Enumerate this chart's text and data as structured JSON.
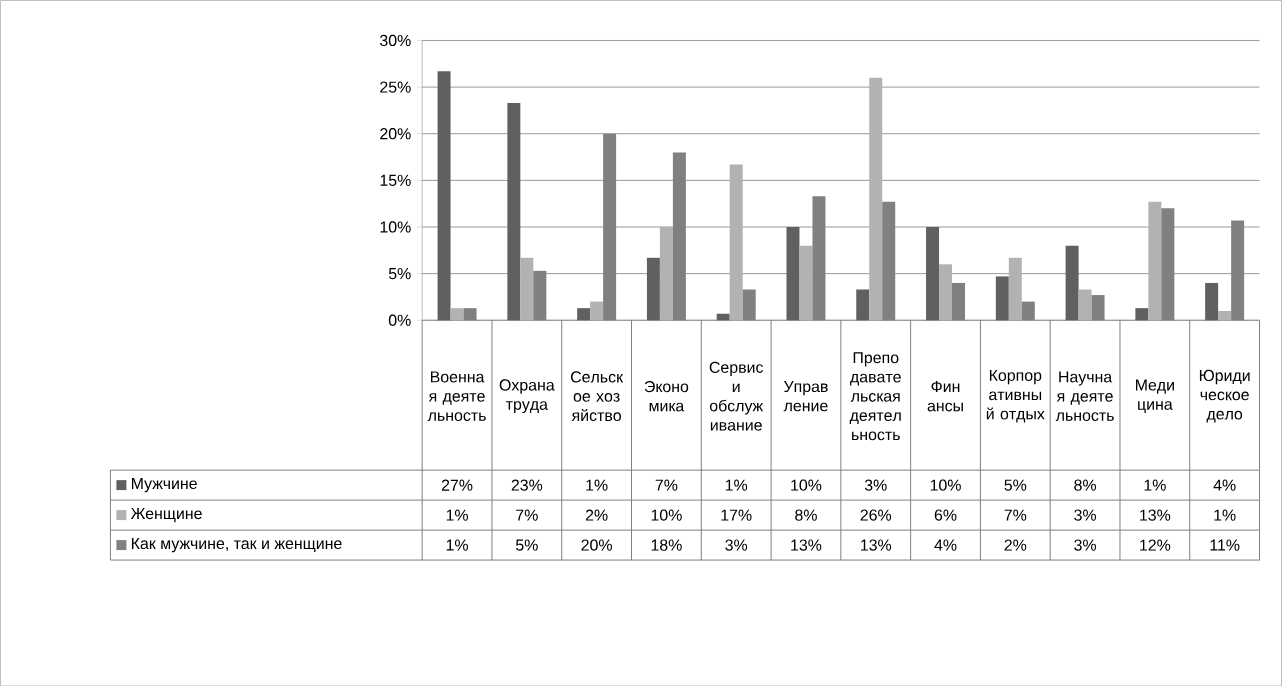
{
  "chart_data": {
    "type": "bar",
    "categories": [
      "Военная деятельность",
      "Охрана труда",
      "Сельское хозяйство",
      "Экономика",
      "Сервис и обслуживание",
      "Управление",
      "Преподавательская деятельность",
      "Финансы",
      "Корпоративный отдых",
      "Научная деятельность",
      "Медицина",
      "Юридическое дело"
    ],
    "series": [
      {
        "name": "Мужчине",
        "color": "#606060",
        "values": [
          26.7,
          23.3,
          1.3,
          6.7,
          0.7,
          10,
          3.3,
          10,
          4.7,
          8,
          1.3,
          4
        ],
        "value_labels": [
          "27%",
          "23%",
          "1%",
          "7%",
          "1%",
          "10%",
          "3%",
          "10%",
          "5%",
          "8%",
          "1%",
          "4%"
        ]
      },
      {
        "name": "Женщине",
        "color": "#b2b2b2",
        "values": [
          1.3,
          6.7,
          2,
          10,
          16.7,
          8,
          26,
          6,
          6.7,
          3.3,
          12.7,
          1
        ],
        "value_labels": [
          "1%",
          "7%",
          "2%",
          "10%",
          "17%",
          "8%",
          "26%",
          "6%",
          "7%",
          "3%",
          "13%",
          "1%"
        ]
      },
      {
        "name": "Как мужчине, так и женщине",
        "color": "#808080",
        "values": [
          1.3,
          5.3,
          20,
          18,
          3.3,
          13.3,
          12.7,
          4,
          2,
          2.7,
          12,
          10.7
        ],
        "value_labels": [
          "1%",
          "5%",
          "20%",
          "18%",
          "3%",
          "13%",
          "13%",
          "4%",
          "2%",
          "3%",
          "12%",
          "11%"
        ]
      }
    ],
    "ylim": [
      0,
      30
    ],
    "yticks": [
      {
        "value": 0,
        "label": "0%"
      },
      {
        "value": 5,
        "label": "5%"
      },
      {
        "value": 10,
        "label": "10%"
      },
      {
        "value": 15,
        "label": "15%"
      },
      {
        "value": 20,
        "label": "20%"
      },
      {
        "value": 25,
        "label": "25%"
      },
      {
        "value": 30,
        "label": "30%"
      }
    ],
    "grid": "y",
    "legend": "bottom"
  }
}
